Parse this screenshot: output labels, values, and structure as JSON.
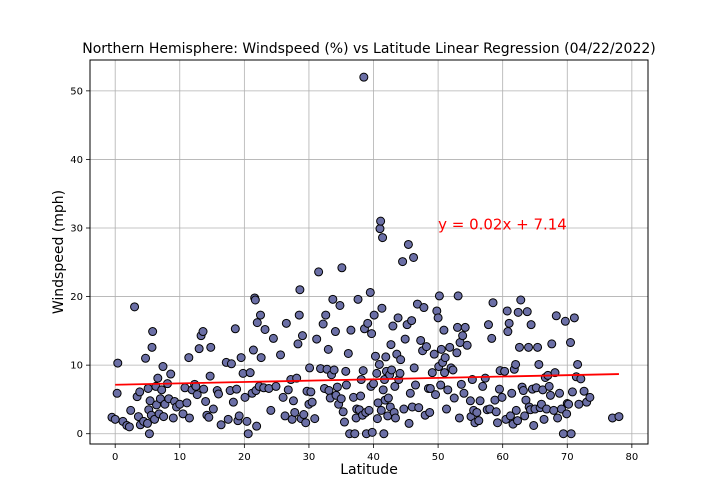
{
  "chart_data": {
    "type": "scatter",
    "title": "Northern Hemisphere: Windspeed (%) vs Latitude Linear Regression (04/22/2022)",
    "xlabel": "Latitude",
    "ylabel": "Windspeed (mph)",
    "xlim": [
      -3.9,
      82.5
    ],
    "ylim": [
      -1.5,
      54.5
    ],
    "xticks": [
      0,
      10,
      20,
      30,
      40,
      50,
      60,
      70,
      80
    ],
    "yticks": [
      0,
      10,
      20,
      30,
      40,
      50
    ],
    "grid": true,
    "colors": {
      "marker_fill": "#6b6fa6",
      "marker_edge": "#000000",
      "regression": "#ff0000",
      "grid": "#b0b0b0"
    },
    "regression": {
      "equation": "y = 0.02x + 7.14",
      "slope": 0.02,
      "intercept": 7.14,
      "x_range": [
        0,
        78
      ],
      "label_at": [
        50,
        29.8
      ]
    },
    "points": [
      [
        -0.5,
        2.4
      ],
      [
        0,
        2.1
      ],
      [
        0.3,
        5.9
      ],
      [
        0.4,
        10.3
      ],
      [
        1.2,
        1.8
      ],
      [
        1.8,
        1.2
      ],
      [
        2.2,
        1.0
      ],
      [
        2.4,
        3.4
      ],
      [
        3,
        18.5
      ],
      [
        3.4,
        5.4
      ],
      [
        3.6,
        2.5
      ],
      [
        3.8,
        6.1
      ],
      [
        3.9,
        1.3
      ],
      [
        4.4,
        1.8
      ],
      [
        4.7,
        11
      ],
      [
        5,
        1.5
      ],
      [
        5.1,
        6.6
      ],
      [
        5.2,
        3.5
      ],
      [
        5.3,
        0
      ],
      [
        5.4,
        4.8
      ],
      [
        5.6,
        2.7
      ],
      [
        5.7,
        12.6
      ],
      [
        5.8,
        14.9
      ],
      [
        6.1,
        2.1
      ],
      [
        6.3,
        6.9
      ],
      [
        6.4,
        4.2
      ],
      [
        6.6,
        8.1
      ],
      [
        6.8,
        2.9
      ],
      [
        7,
        5.1
      ],
      [
        7.2,
        6.4
      ],
      [
        7.4,
        9.8
      ],
      [
        7.5,
        2.5
      ],
      [
        7.7,
        4.3
      ],
      [
        8.1,
        7.3
      ],
      [
        8.3,
        5.1
      ],
      [
        8.6,
        8.7
      ],
      [
        9,
        2.3
      ],
      [
        9.2,
        4.7
      ],
      [
        9.5,
        3.9
      ],
      [
        10,
        4.3
      ],
      [
        10.5,
        2.9
      ],
      [
        10.8,
        6.7
      ],
      [
        11.1,
        4.5
      ],
      [
        11.4,
        11.1
      ],
      [
        11.5,
        2.3
      ],
      [
        11.9,
        6.4
      ],
      [
        12.3,
        7.2
      ],
      [
        12.5,
        6.9
      ],
      [
        12.7,
        5.7
      ],
      [
        13,
        12.4
      ],
      [
        13.3,
        14.3
      ],
      [
        13.6,
        14.9
      ],
      [
        13.7,
        6.5
      ],
      [
        14,
        4.7
      ],
      [
        14.2,
        2.7
      ],
      [
        14.5,
        2.4
      ],
      [
        14.7,
        8.4
      ],
      [
        14.8,
        12.6
      ],
      [
        15.2,
        3.6
      ],
      [
        15.8,
        6.3
      ],
      [
        16,
        5.8
      ],
      [
        16.4,
        1.3
      ],
      [
        17.2,
        10.4
      ],
      [
        17.5,
        2.1
      ],
      [
        17.8,
        6.3
      ],
      [
        18,
        10.2
      ],
      [
        18.3,
        4.6
      ],
      [
        18.6,
        15.3
      ],
      [
        18.8,
        6.5
      ],
      [
        19,
        1.9
      ],
      [
        19.2,
        2.6
      ],
      [
        19.5,
        11.1
      ],
      [
        19.8,
        8.8
      ],
      [
        20.1,
        5.3
      ],
      [
        20.4,
        1.8
      ],
      [
        20.6,
        0
      ],
      [
        20.9,
        8.9
      ],
      [
        21.2,
        5.9
      ],
      [
        21.4,
        12.2
      ],
      [
        21.6,
        19.8
      ],
      [
        21.7,
        19.5
      ],
      [
        21.8,
        6.3
      ],
      [
        21.9,
        1.1
      ],
      [
        22,
        16.2
      ],
      [
        22.3,
        6.9
      ],
      [
        22.5,
        17.3
      ],
      [
        22.6,
        11.1
      ],
      [
        23,
        6.7
      ],
      [
        23.2,
        15.2
      ],
      [
        23.8,
        6.6
      ],
      [
        24.1,
        3.4
      ],
      [
        24.5,
        13.9
      ],
      [
        24.9,
        6.9
      ],
      [
        25.6,
        11.5
      ],
      [
        26,
        5.3
      ],
      [
        26.3,
        2.6
      ],
      [
        26.5,
        16.1
      ],
      [
        26.8,
        6.4
      ],
      [
        27.2,
        7.9
      ],
      [
        27.4,
        2.1
      ],
      [
        27.6,
        4.8
      ],
      [
        27.8,
        3.1
      ],
      [
        28.1,
        8.1
      ],
      [
        28.3,
        13.1
      ],
      [
        28.5,
        17.3
      ],
      [
        28.6,
        21
      ],
      [
        28.8,
        2.2
      ],
      [
        29,
        14.3
      ],
      [
        29.2,
        2.8
      ],
      [
        29.5,
        1.6
      ],
      [
        29.7,
        6.2
      ],
      [
        30,
        4.3
      ],
      [
        30.1,
        9.6
      ],
      [
        30.3,
        6.1
      ],
      [
        30.5,
        4.6
      ],
      [
        30.9,
        2.2
      ],
      [
        31.2,
        13.8
      ],
      [
        31.5,
        23.6
      ],
      [
        31.8,
        9.5
      ],
      [
        32.2,
        16
      ],
      [
        32.4,
        6.6
      ],
      [
        32.6,
        17.3
      ],
      [
        32.8,
        9.4
      ],
      [
        33,
        12.3
      ],
      [
        33.1,
        6.3
      ],
      [
        33.3,
        5.2
      ],
      [
        33.5,
        8.6
      ],
      [
        33.7,
        19.6
      ],
      [
        33.9,
        9.3
      ],
      [
        34.1,
        14.9
      ],
      [
        34.2,
        5.6
      ],
      [
        34.4,
        6.8
      ],
      [
        34.6,
        4.3
      ],
      [
        34.8,
        18.7
      ],
      [
        35,
        5.1
      ],
      [
        35.1,
        24.2
      ],
      [
        35.3,
        3.2
      ],
      [
        35.5,
        1.7
      ],
      [
        35.7,
        9.1
      ],
      [
        35.8,
        7.1
      ],
      [
        36.1,
        11.7
      ],
      [
        36.3,
        0
      ],
      [
        36.5,
        15.1
      ],
      [
        36.9,
        5.3
      ],
      [
        37.1,
        0
      ],
      [
        37.3,
        2.3
      ],
      [
        37.4,
        3.6
      ],
      [
        37.6,
        19.6
      ],
      [
        37.8,
        3.5
      ],
      [
        38,
        5.5
      ],
      [
        38.1,
        7.9
      ],
      [
        38.3,
        2.7
      ],
      [
        38.4,
        9.2
      ],
      [
        38.5,
        52
      ],
      [
        38.6,
        15.3
      ],
      [
        38.8,
        3.1
      ],
      [
        38.9,
        0
      ],
      [
        39.1,
        16.1
      ],
      [
        39.3,
        3.4
      ],
      [
        39.5,
        20.6
      ],
      [
        39.6,
        6.9
      ],
      [
        39.7,
        14.6
      ],
      [
        39.8,
        0.2
      ],
      [
        40,
        7.3
      ],
      [
        40.1,
        17.3
      ],
      [
        40.3,
        11.3
      ],
      [
        40.5,
        8.8
      ],
      [
        40.6,
        2.2
      ],
      [
        40.7,
        4.5
      ],
      [
        40.9,
        10.1
      ],
      [
        41,
        29.9
      ],
      [
        41.1,
        31
      ],
      [
        41.2,
        3.4
      ],
      [
        41.3,
        18.3
      ],
      [
        41.4,
        28.6
      ],
      [
        41.5,
        6.4
      ],
      [
        41.6,
        0
      ],
      [
        41.7,
        7.9
      ],
      [
        41.8,
        4.9
      ],
      [
        41.9,
        11.2
      ],
      [
        42,
        9.1
      ],
      [
        42.2,
        2.6
      ],
      [
        42.3,
        5.2
      ],
      [
        42.5,
        8.6
      ],
      [
        42.6,
        3.9
      ],
      [
        42.7,
        13
      ],
      [
        42.8,
        9.3
      ],
      [
        43,
        15.7
      ],
      [
        43.2,
        3.1
      ],
      [
        43.3,
        6.9
      ],
      [
        43.4,
        2.3
      ],
      [
        43.6,
        11.6
      ],
      [
        43.8,
        16.9
      ],
      [
        43.9,
        7.9
      ],
      [
        44.1,
        8.8
      ],
      [
        44.2,
        10.8
      ],
      [
        44.5,
        25.1
      ],
      [
        44.7,
        3.6
      ],
      [
        44.9,
        13.8
      ],
      [
        45.2,
        15.9
      ],
      [
        45.4,
        27.6
      ],
      [
        45.5,
        1.5
      ],
      [
        45.7,
        5.9
      ],
      [
        45.9,
        16.5
      ],
      [
        46,
        3.9
      ],
      [
        46.2,
        25.7
      ],
      [
        46.3,
        9.6
      ],
      [
        46.5,
        7.1
      ],
      [
        46.8,
        18.9
      ],
      [
        47,
        3.8
      ],
      [
        47.3,
        13.6
      ],
      [
        47.6,
        12.1
      ],
      [
        47.8,
        18.4
      ],
      [
        48,
        2.7
      ],
      [
        48.2,
        12.7
      ],
      [
        48.5,
        6.6
      ],
      [
        48.7,
        3.1
      ],
      [
        48.8,
        6.6
      ],
      [
        49.1,
        8.9
      ],
      [
        49.4,
        11.6
      ],
      [
        49.6,
        5.7
      ],
      [
        49.8,
        17.9
      ],
      [
        50,
        16.9
      ],
      [
        50.1,
        9.8
      ],
      [
        50.2,
        20.1
      ],
      [
        50.4,
        7.1
      ],
      [
        50.5,
        12.3
      ],
      [
        50.7,
        10.4
      ],
      [
        50.9,
        15.1
      ],
      [
        51,
        8.9
      ],
      [
        51.1,
        11.1
      ],
      [
        51.3,
        3.6
      ],
      [
        51.5,
        6.4
      ],
      [
        51.8,
        12.6
      ],
      [
        52,
        9.6
      ],
      [
        52.3,
        9.3
      ],
      [
        52.5,
        5.2
      ],
      [
        52.9,
        11.8
      ],
      [
        53,
        15.5
      ],
      [
        53.1,
        20.1
      ],
      [
        53.3,
        2.3
      ],
      [
        53.4,
        13.3
      ],
      [
        53.6,
        7.2
      ],
      [
        53.8,
        14.3
      ],
      [
        54,
        5.9
      ],
      [
        54.2,
        15.5
      ],
      [
        54.5,
        12.9
      ],
      [
        55,
        4.8
      ],
      [
        55.1,
        2.5
      ],
      [
        55.3,
        7.9
      ],
      [
        55.5,
        3.4
      ],
      [
        55.7,
        1.6
      ],
      [
        56,
        3.1
      ],
      [
        56.3,
        1.9
      ],
      [
        56.5,
        4.8
      ],
      [
        56.9,
        6.9
      ],
      [
        57.3,
        8.1
      ],
      [
        57.6,
        3.5
      ],
      [
        57.8,
        15.9
      ],
      [
        58,
        3.6
      ],
      [
        58.3,
        13.9
      ],
      [
        58.5,
        19.1
      ],
      [
        58.8,
        4.9
      ],
      [
        59,
        3.2
      ],
      [
        59.2,
        1.6
      ],
      [
        59.5,
        6.5
      ],
      [
        59.6,
        9.2
      ],
      [
        59.9,
        5.3
      ],
      [
        60.3,
        9.1
      ],
      [
        60.5,
        2.1
      ],
      [
        60.7,
        17.9
      ],
      [
        60.8,
        14.9
      ],
      [
        61,
        16.1
      ],
      [
        61.2,
        2.6
      ],
      [
        61.4,
        5.9
      ],
      [
        61.6,
        1.4
      ],
      [
        61.8,
        9.4
      ],
      [
        62,
        10.1
      ],
      [
        62.1,
        3.4
      ],
      [
        62.3,
        1.9
      ],
      [
        62.4,
        17.7
      ],
      [
        62.6,
        12.6
      ],
      [
        62.8,
        19.5
      ],
      [
        63,
        6.8
      ],
      [
        63.2,
        6.3
      ],
      [
        63.4,
        2.6
      ],
      [
        63.6,
        4.9
      ],
      [
        63.8,
        17.8
      ],
      [
        64,
        12.6
      ],
      [
        64.1,
        3.9
      ],
      [
        64.3,
        3.5
      ],
      [
        64.4,
        15.9
      ],
      [
        64.6,
        6.5
      ],
      [
        64.8,
        1.2
      ],
      [
        65,
        3.6
      ],
      [
        65.2,
        6.7
      ],
      [
        65.4,
        12.6
      ],
      [
        65.6,
        10.1
      ],
      [
        65.8,
        3.8
      ],
      [
        66,
        4.3
      ],
      [
        66.2,
        6.4
      ],
      [
        66.4,
        2.1
      ],
      [
        66.6,
        8.2
      ],
      [
        66.8,
        3.6
      ],
      [
        67,
        8.5
      ],
      [
        67.2,
        6.9
      ],
      [
        67.4,
        5.6
      ],
      [
        67.6,
        13.1
      ],
      [
        67.9,
        3.4
      ],
      [
        68.1,
        8.9
      ],
      [
        68.3,
        17.2
      ],
      [
        68.5,
        2.3
      ],
      [
        68.8,
        5.9
      ],
      [
        69.1,
        3.6
      ],
      [
        69.4,
        0
      ],
      [
        69.7,
        16.4
      ],
      [
        69.9,
        2.9
      ],
      [
        70,
        4.4
      ],
      [
        70.2,
        4.3
      ],
      [
        70.5,
        13.3
      ],
      [
        70.6,
        0
      ],
      [
        70.8,
        6.1
      ],
      [
        71.1,
        16.9
      ],
      [
        71.4,
        8.3
      ],
      [
        71.6,
        10.1
      ],
      [
        71.8,
        4.3
      ],
      [
        72.1,
        8
      ],
      [
        72.6,
        6.2
      ],
      [
        73,
        4.6
      ],
      [
        73.5,
        5.3
      ],
      [
        77,
        2.3
      ],
      [
        78,
        2.5
      ]
    ]
  }
}
